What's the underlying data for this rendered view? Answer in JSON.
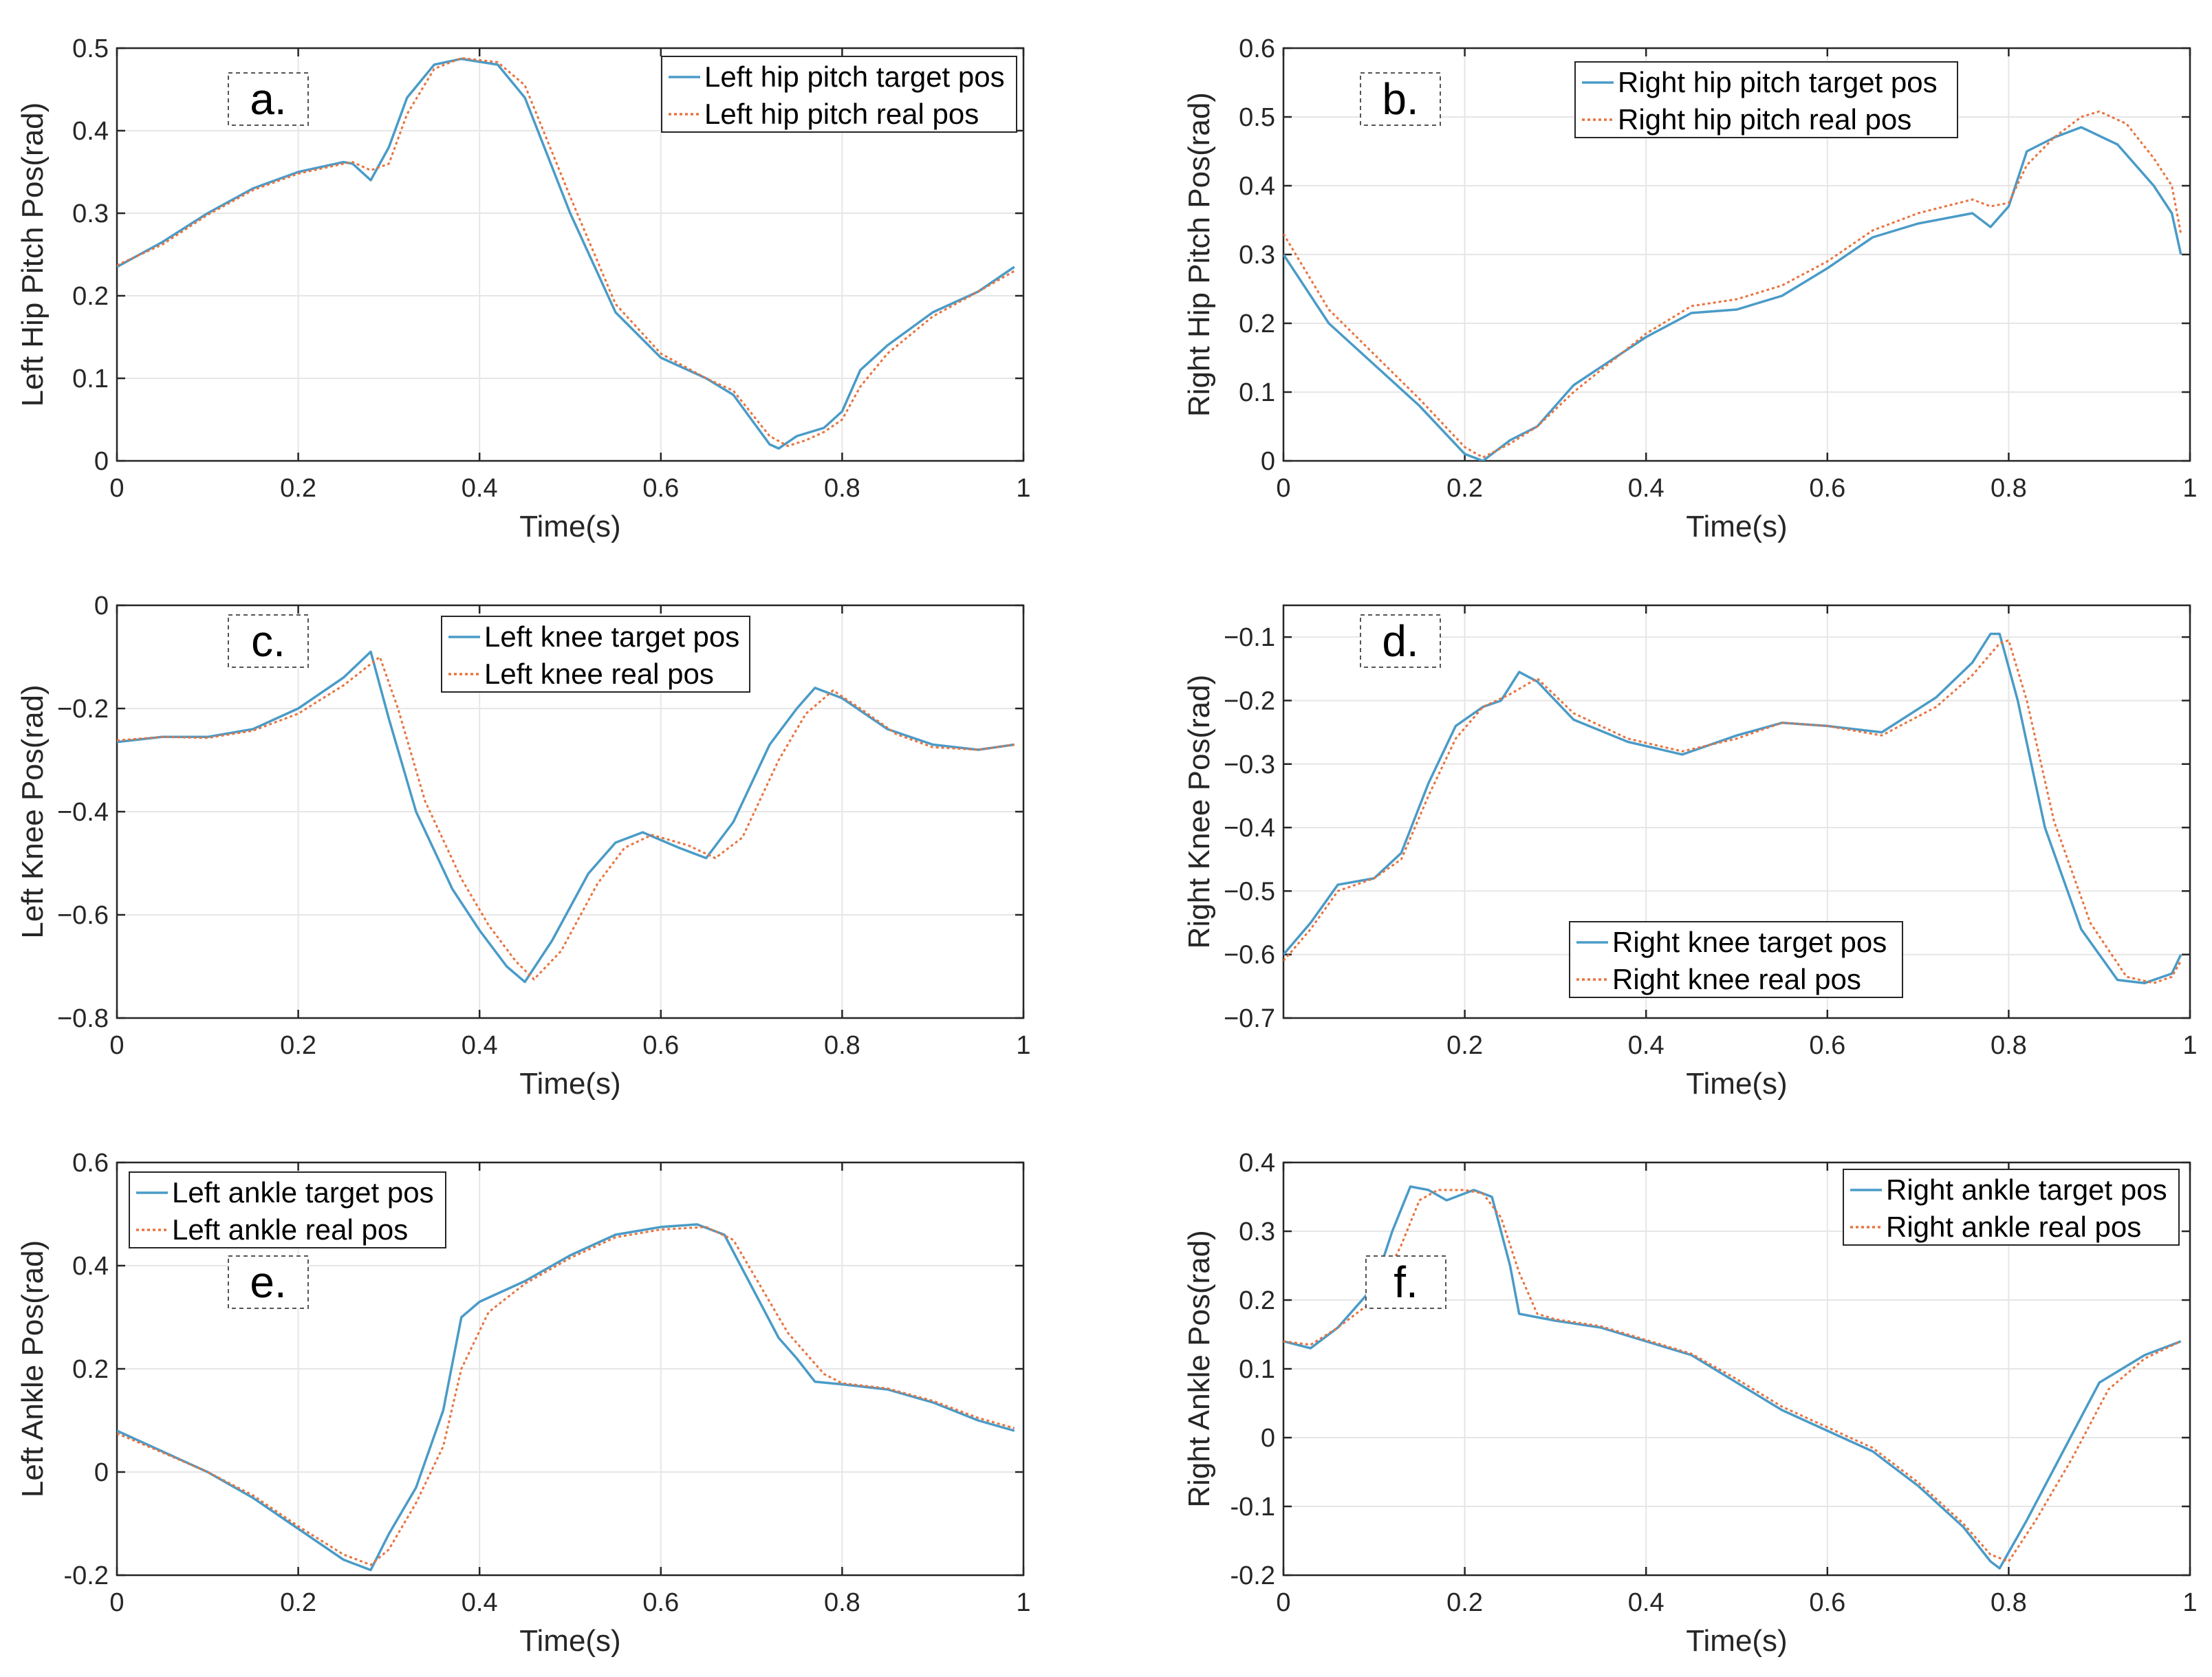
{
  "figure": {
    "description_free": true
  },
  "colors": {
    "target": "#4a9bc7",
    "real": "#e8733f",
    "grid": "#e6e6e6",
    "axis": "#262626"
  },
  "chart_data": [
    {
      "id": "a",
      "type": "line",
      "panel_tag": "a.",
      "xlabel": "Time(s)",
      "ylabel": "Left Hip Pitch Pos(rad)",
      "xlim": [
        0,
        1
      ],
      "ylim": [
        0,
        0.5
      ],
      "xticks": [
        0,
        0.2,
        0.4,
        0.6,
        0.8,
        1
      ],
      "xtick_labels": [
        "0",
        "0.2",
        "0.4",
        "0.6",
        "0.8",
        "1"
      ],
      "yticks": [
        0,
        0.1,
        0.2,
        0.3,
        0.4,
        0.5
      ],
      "ytick_labels": [
        "0",
        "0.1",
        "0.2",
        "0.3",
        "0.4",
        "0.5"
      ],
      "legend_position": "top-right",
      "series": [
        {
          "name": "Left hip pitch target pos",
          "style": "solid",
          "x": [
            0,
            0.05,
            0.1,
            0.15,
            0.2,
            0.25,
            0.26,
            0.28,
            0.3,
            0.32,
            0.35,
            0.38,
            0.42,
            0.45,
            0.5,
            0.55,
            0.6,
            0.65,
            0.68,
            0.72,
            0.73,
            0.75,
            0.78,
            0.8,
            0.82,
            0.85,
            0.9,
            0.95,
            0.99
          ],
          "y": [
            0.235,
            0.265,
            0.3,
            0.33,
            0.35,
            0.362,
            0.36,
            0.34,
            0.38,
            0.44,
            0.48,
            0.487,
            0.48,
            0.44,
            0.3,
            0.18,
            0.125,
            0.1,
            0.08,
            0.02,
            0.015,
            0.03,
            0.04,
            0.06,
            0.11,
            0.14,
            0.18,
            0.205,
            0.235
          ]
        },
        {
          "name": "Left hip pitch real pos",
          "style": "dotted",
          "x": [
            0,
            0.05,
            0.1,
            0.15,
            0.2,
            0.25,
            0.26,
            0.28,
            0.3,
            0.32,
            0.35,
            0.38,
            0.42,
            0.45,
            0.5,
            0.55,
            0.6,
            0.65,
            0.68,
            0.72,
            0.74,
            0.76,
            0.78,
            0.8,
            0.82,
            0.85,
            0.9,
            0.95,
            0.99
          ],
          "y": [
            0.237,
            0.262,
            0.298,
            0.328,
            0.348,
            0.36,
            0.362,
            0.352,
            0.36,
            0.42,
            0.475,
            0.488,
            0.483,
            0.455,
            0.32,
            0.19,
            0.13,
            0.1,
            0.085,
            0.03,
            0.018,
            0.025,
            0.035,
            0.05,
            0.09,
            0.13,
            0.175,
            0.205,
            0.23
          ]
        }
      ]
    },
    {
      "id": "b",
      "type": "line",
      "panel_tag": "b.",
      "xlabel": "Time(s)",
      "ylabel": "Right Hip Pitch Pos(rad)",
      "xlim": [
        0,
        1
      ],
      "ylim": [
        0,
        0.6
      ],
      "xticks": [
        0,
        0.2,
        0.4,
        0.6,
        0.8,
        1
      ],
      "xtick_labels": [
        "0",
        "0.2",
        "0.4",
        "0.6",
        "0.8",
        "1"
      ],
      "yticks": [
        0,
        0.1,
        0.2,
        0.3,
        0.4,
        0.5,
        0.6
      ],
      "ytick_labels": [
        "0",
        "0.1",
        "0.2",
        "0.3",
        "0.4",
        "0.5",
        "0.6"
      ],
      "legend_position": "top-center",
      "series": [
        {
          "name": "Right hip pitch target pos",
          "style": "solid",
          "x": [
            0,
            0.05,
            0.1,
            0.15,
            0.2,
            0.22,
            0.25,
            0.28,
            0.32,
            0.4,
            0.45,
            0.5,
            0.55,
            0.6,
            0.65,
            0.7,
            0.76,
            0.78,
            0.8,
            0.82,
            0.85,
            0.88,
            0.92,
            0.96,
            0.98,
            0.99
          ],
          "y": [
            0.3,
            0.2,
            0.14,
            0.08,
            0.01,
            0.0,
            0.03,
            0.05,
            0.11,
            0.18,
            0.215,
            0.22,
            0.24,
            0.28,
            0.325,
            0.345,
            0.36,
            0.34,
            0.37,
            0.45,
            0.47,
            0.485,
            0.46,
            0.4,
            0.36,
            0.3
          ]
        },
        {
          "name": "Right hip pitch real pos",
          "style": "dotted",
          "x": [
            0,
            0.05,
            0.1,
            0.15,
            0.2,
            0.22,
            0.25,
            0.28,
            0.32,
            0.4,
            0.45,
            0.5,
            0.55,
            0.6,
            0.65,
            0.7,
            0.76,
            0.78,
            0.8,
            0.82,
            0.85,
            0.88,
            0.9,
            0.93,
            0.96,
            0.98,
            0.99
          ],
          "y": [
            0.33,
            0.22,
            0.155,
            0.09,
            0.02,
            0.005,
            0.025,
            0.05,
            0.1,
            0.185,
            0.225,
            0.235,
            0.255,
            0.29,
            0.335,
            0.36,
            0.38,
            0.37,
            0.375,
            0.43,
            0.47,
            0.5,
            0.508,
            0.49,
            0.44,
            0.4,
            0.33
          ]
        }
      ]
    },
    {
      "id": "c",
      "type": "line",
      "panel_tag": "c.",
      "xlabel": "Time(s)",
      "ylabel": "Left Knee Pos(rad)",
      "xlim": [
        0,
        1
      ],
      "ylim": [
        -0.8,
        0
      ],
      "xticks": [
        0,
        0.2,
        0.4,
        0.6,
        0.8,
        1
      ],
      "xtick_labels": [
        "0",
        "0.2",
        "0.4",
        "0.6",
        "0.8",
        "1"
      ],
      "yticks": [
        -0.8,
        -0.6,
        -0.4,
        -0.2,
        0
      ],
      "ytick_labels": [
        "−0.8",
        "−0.6",
        "−0.4",
        "−0.2",
        "0"
      ],
      "legend_position": "top-center",
      "series": [
        {
          "name": "Left knee target pos",
          "style": "solid",
          "x": [
            0,
            0.05,
            0.1,
            0.15,
            0.2,
            0.25,
            0.28,
            0.3,
            0.33,
            0.37,
            0.4,
            0.43,
            0.45,
            0.48,
            0.52,
            0.55,
            0.58,
            0.62,
            0.65,
            0.68,
            0.72,
            0.75,
            0.77,
            0.8,
            0.85,
            0.9,
            0.95,
            0.99
          ],
          "y": [
            -0.265,
            -0.255,
            -0.255,
            -0.24,
            -0.2,
            -0.14,
            -0.09,
            -0.22,
            -0.4,
            -0.55,
            -0.63,
            -0.7,
            -0.73,
            -0.65,
            -0.52,
            -0.46,
            -0.44,
            -0.47,
            -0.49,
            -0.42,
            -0.27,
            -0.2,
            -0.16,
            -0.18,
            -0.24,
            -0.27,
            -0.28,
            -0.27
          ]
        },
        {
          "name": "Left knee real pos",
          "style": "dotted",
          "x": [
            0,
            0.05,
            0.1,
            0.15,
            0.2,
            0.25,
            0.29,
            0.31,
            0.34,
            0.38,
            0.41,
            0.44,
            0.46,
            0.49,
            0.53,
            0.56,
            0.59,
            0.63,
            0.66,
            0.69,
            0.73,
            0.76,
            0.79,
            0.82,
            0.86,
            0.9,
            0.95,
            0.99
          ],
          "y": [
            -0.262,
            -0.255,
            -0.257,
            -0.243,
            -0.21,
            -0.155,
            -0.1,
            -0.2,
            -0.38,
            -0.53,
            -0.62,
            -0.69,
            -0.725,
            -0.67,
            -0.54,
            -0.47,
            -0.445,
            -0.465,
            -0.49,
            -0.45,
            -0.3,
            -0.21,
            -0.165,
            -0.2,
            -0.25,
            -0.275,
            -0.28,
            -0.27
          ]
        }
      ]
    },
    {
      "id": "d",
      "type": "line",
      "panel_tag": "d.",
      "xlabel": "Time(s)",
      "ylabel": "Right Knee Pos(rad)",
      "xlim": [
        0,
        1
      ],
      "ylim": [
        -0.7,
        -0.05
      ],
      "xticks": [
        0.2,
        0.4,
        0.6,
        0.8,
        1
      ],
      "xtick_labels": [
        "0.2",
        "0.4",
        "0.6",
        "0.8",
        "1"
      ],
      "yticks": [
        -0.7,
        -0.6,
        -0.5,
        -0.4,
        -0.3,
        -0.2,
        -0.1
      ],
      "ytick_labels": [
        "−0.7",
        "−0.6",
        "−0.5",
        "−0.4",
        "−0.3",
        "−0.2",
        "−0.1"
      ],
      "legend_position": "bottom-center",
      "series": [
        {
          "name": "Right knee target pos",
          "style": "solid",
          "x": [
            0,
            0.03,
            0.06,
            0.1,
            0.13,
            0.16,
            0.19,
            0.22,
            0.24,
            0.26,
            0.28,
            0.32,
            0.38,
            0.44,
            0.5,
            0.55,
            0.6,
            0.66,
            0.72,
            0.76,
            0.78,
            0.79,
            0.81,
            0.84,
            0.88,
            0.92,
            0.95,
            0.98,
            0.99
          ],
          "y": [
            -0.6,
            -0.55,
            -0.49,
            -0.48,
            -0.44,
            -0.33,
            -0.24,
            -0.21,
            -0.2,
            -0.155,
            -0.17,
            -0.23,
            -0.265,
            -0.285,
            -0.255,
            -0.235,
            -0.24,
            -0.25,
            -0.195,
            -0.14,
            -0.095,
            -0.095,
            -0.2,
            -0.4,
            -0.56,
            -0.64,
            -0.645,
            -0.63,
            -0.6
          ]
        },
        {
          "name": "Right knee real pos",
          "style": "dotted",
          "x": [
            0,
            0.03,
            0.06,
            0.1,
            0.13,
            0.16,
            0.19,
            0.22,
            0.25,
            0.28,
            0.32,
            0.38,
            0.44,
            0.5,
            0.55,
            0.6,
            0.66,
            0.72,
            0.76,
            0.79,
            0.8,
            0.82,
            0.85,
            0.89,
            0.93,
            0.96,
            0.98,
            0.99
          ],
          "y": [
            -0.61,
            -0.56,
            -0.5,
            -0.48,
            -0.45,
            -0.35,
            -0.26,
            -0.21,
            -0.19,
            -0.165,
            -0.22,
            -0.26,
            -0.28,
            -0.26,
            -0.235,
            -0.24,
            -0.255,
            -0.21,
            -0.16,
            -0.11,
            -0.105,
            -0.2,
            -0.39,
            -0.55,
            -0.635,
            -0.645,
            -0.635,
            -0.61
          ]
        }
      ]
    },
    {
      "id": "e",
      "type": "line",
      "panel_tag": "e.",
      "xlabel": "Time(s)",
      "ylabel": "Left Ankle Pos(rad)",
      "xlim": [
        0,
        1
      ],
      "ylim": [
        -0.2,
        0.6
      ],
      "xticks": [
        0,
        0.2,
        0.4,
        0.6,
        0.8,
        1
      ],
      "xtick_labels": [
        "0",
        "0.2",
        "0.4",
        "0.6",
        "0.8",
        "1"
      ],
      "yticks": [
        -0.2,
        0,
        0.2,
        0.4,
        0.6
      ],
      "ytick_labels": [
        "-0.2",
        "0",
        "0.2",
        "0.4",
        "0.6"
      ],
      "legend_position": "top-left",
      "series": [
        {
          "name": "Left ankle target pos",
          "style": "solid",
          "x": [
            0,
            0.05,
            0.1,
            0.15,
            0.2,
            0.25,
            0.28,
            0.3,
            0.33,
            0.36,
            0.38,
            0.4,
            0.45,
            0.5,
            0.55,
            0.6,
            0.64,
            0.67,
            0.7,
            0.73,
            0.75,
            0.77,
            0.8,
            0.85,
            0.9,
            0.95,
            0.99
          ],
          "y": [
            0.08,
            0.04,
            0.0,
            -0.05,
            -0.11,
            -0.17,
            -0.19,
            -0.12,
            -0.03,
            0.12,
            0.3,
            0.33,
            0.37,
            0.42,
            0.46,
            0.475,
            0.48,
            0.46,
            0.36,
            0.26,
            0.22,
            0.175,
            0.17,
            0.16,
            0.135,
            0.1,
            0.08
          ]
        },
        {
          "name": "Left ankle real pos",
          "style": "dotted",
          "x": [
            0,
            0.05,
            0.1,
            0.15,
            0.2,
            0.25,
            0.28,
            0.3,
            0.33,
            0.36,
            0.38,
            0.41,
            0.45,
            0.5,
            0.55,
            0.6,
            0.65,
            0.68,
            0.71,
            0.74,
            0.76,
            0.78,
            0.8,
            0.85,
            0.9,
            0.95,
            0.99
          ],
          "y": [
            0.075,
            0.038,
            0.0,
            -0.045,
            -0.105,
            -0.16,
            -0.18,
            -0.15,
            -0.06,
            0.05,
            0.2,
            0.31,
            0.365,
            0.415,
            0.455,
            0.47,
            0.475,
            0.45,
            0.36,
            0.27,
            0.23,
            0.19,
            0.172,
            0.162,
            0.138,
            0.105,
            0.085
          ]
        }
      ]
    },
    {
      "id": "f",
      "type": "line",
      "panel_tag": "f.",
      "xlabel": "Time(s)",
      "ylabel": "Right Ankle Pos(rad)",
      "xlim": [
        0,
        1
      ],
      "ylim": [
        -0.2,
        0.4
      ],
      "xticks": [
        0,
        0.2,
        0.4,
        0.6,
        0.8,
        1
      ],
      "xtick_labels": [
        "0",
        "0.2",
        "0.4",
        "0.6",
        "0.8",
        "1"
      ],
      "yticks": [
        -0.2,
        -0.1,
        0,
        0.1,
        0.2,
        0.3,
        0.4
      ],
      "ytick_labels": [
        "-0.2",
        "-0.1",
        "0",
        "0.1",
        "0.2",
        "0.3",
        "0.4"
      ],
      "legend_position": "top-right",
      "series": [
        {
          "name": "Right ankle target pos",
          "style": "solid",
          "x": [
            0,
            0.03,
            0.06,
            0.1,
            0.12,
            0.14,
            0.16,
            0.18,
            0.21,
            0.23,
            0.25,
            0.26,
            0.3,
            0.35,
            0.4,
            0.45,
            0.5,
            0.55,
            0.6,
            0.65,
            0.7,
            0.75,
            0.78,
            0.79,
            0.82,
            0.86,
            0.9,
            0.95,
            0.99
          ],
          "y": [
            0.14,
            0.13,
            0.16,
            0.22,
            0.3,
            0.365,
            0.36,
            0.345,
            0.36,
            0.35,
            0.25,
            0.18,
            0.17,
            0.16,
            0.14,
            0.12,
            0.08,
            0.04,
            0.01,
            -0.02,
            -0.07,
            -0.13,
            -0.18,
            -0.19,
            -0.12,
            -0.02,
            0.08,
            0.12,
            0.14
          ]
        },
        {
          "name": "Right ankle real pos",
          "style": "dotted",
          "x": [
            0,
            0.03,
            0.06,
            0.1,
            0.13,
            0.15,
            0.17,
            0.2,
            0.22,
            0.24,
            0.26,
            0.28,
            0.3,
            0.35,
            0.4,
            0.45,
            0.5,
            0.55,
            0.6,
            0.65,
            0.7,
            0.75,
            0.78,
            0.8,
            0.83,
            0.87,
            0.91,
            0.95,
            0.99
          ],
          "y": [
            0.14,
            0.135,
            0.16,
            0.2,
            0.28,
            0.345,
            0.36,
            0.36,
            0.355,
            0.32,
            0.24,
            0.18,
            0.172,
            0.162,
            0.142,
            0.122,
            0.085,
            0.045,
            0.015,
            -0.015,
            -0.065,
            -0.125,
            -0.17,
            -0.18,
            -0.12,
            -0.03,
            0.07,
            0.115,
            0.14
          ]
        }
      ]
    }
  ]
}
